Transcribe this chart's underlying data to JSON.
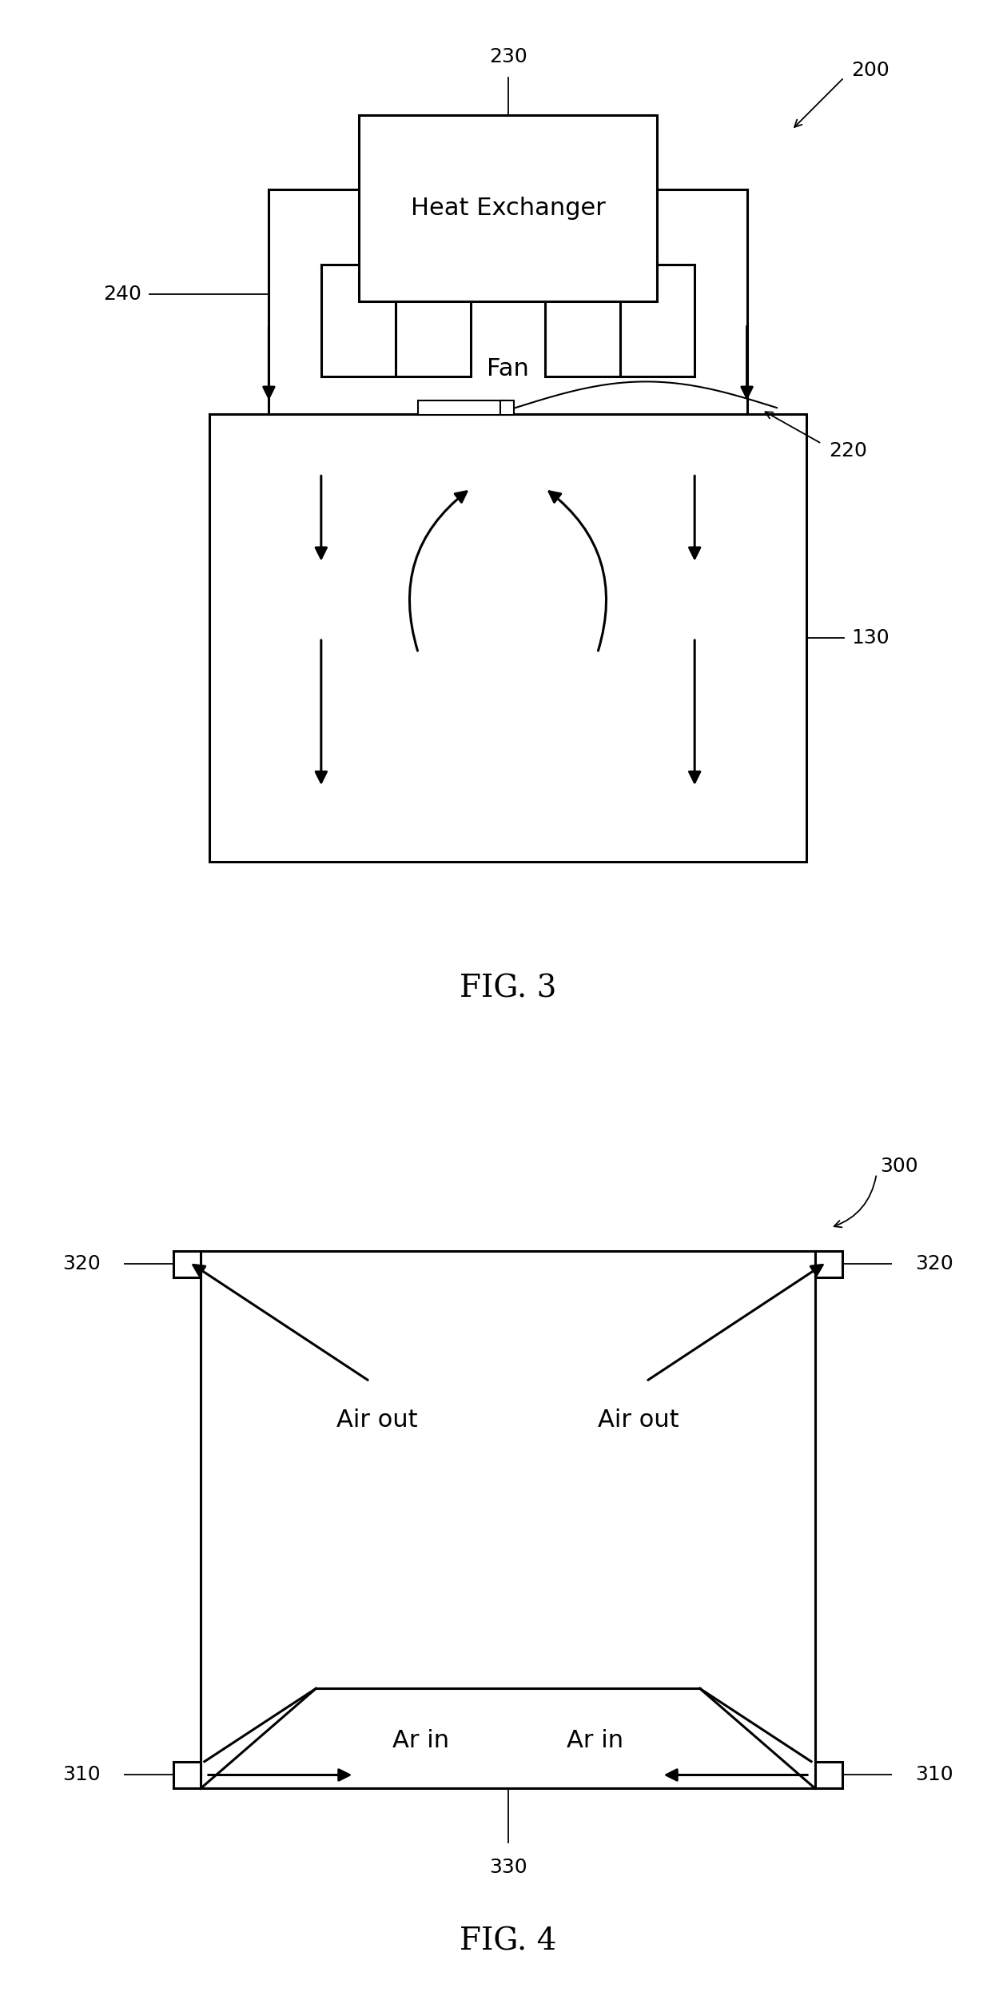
{
  "fig3": {
    "title": "FIG. 3",
    "he_text": "Heat Exchanger",
    "fan_text": "Fan",
    "label_230": "230",
    "label_200": "200",
    "label_240": "240",
    "label_220": "220",
    "label_130": "130"
  },
  "fig4": {
    "title": "FIG. 4",
    "label_300": "300",
    "label_320": "320",
    "label_310": "310",
    "label_330": "330",
    "air_out": "Air out",
    "ar_in": "Ar in"
  }
}
